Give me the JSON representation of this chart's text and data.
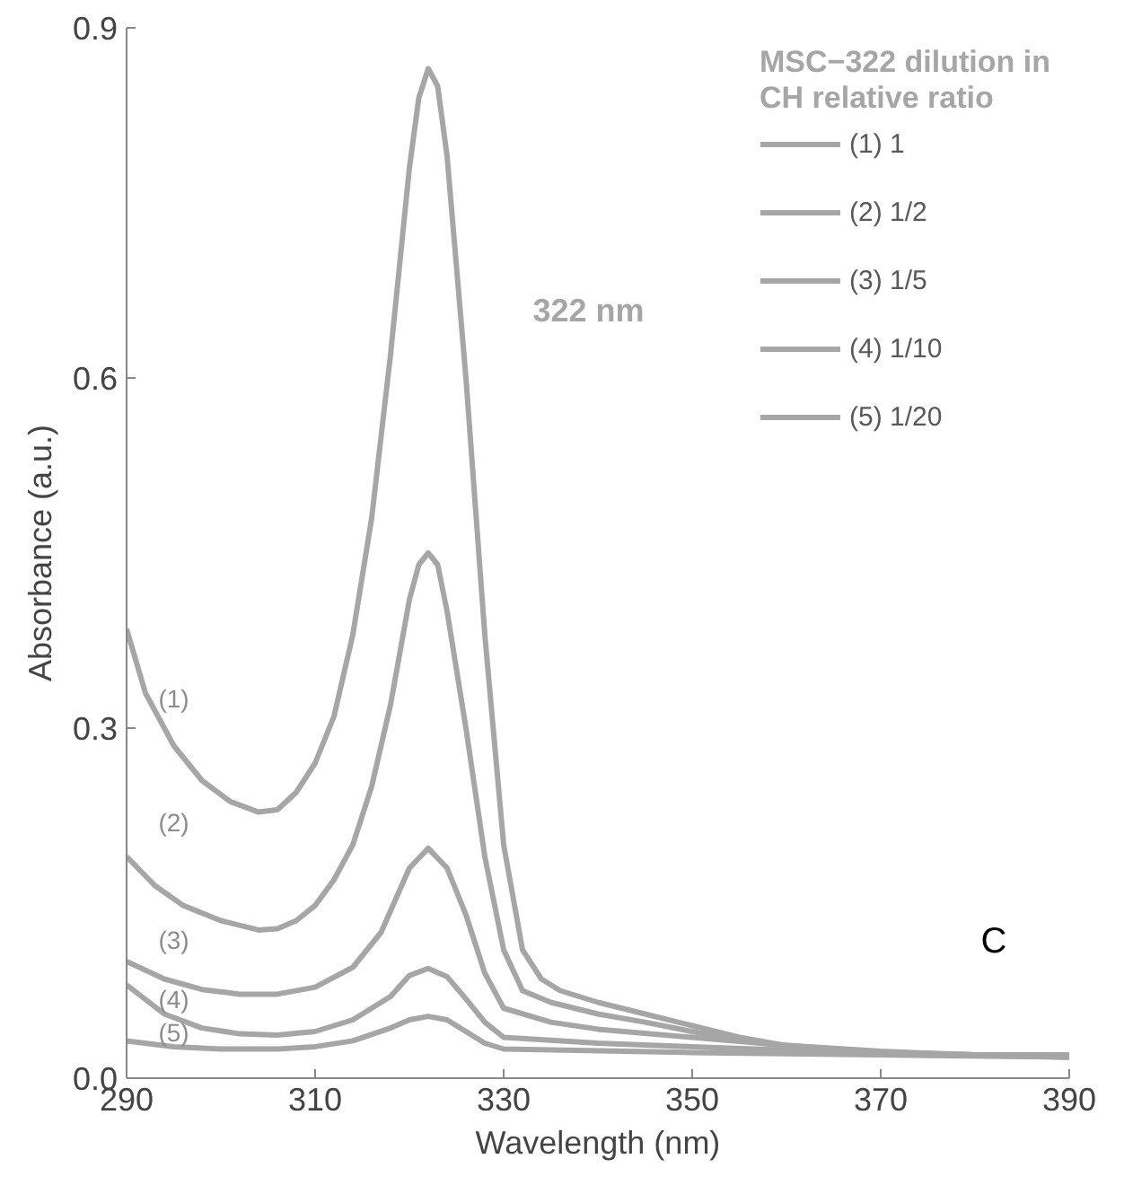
{
  "chart_data": {
    "type": "line",
    "xlabel": "Wavelength (nm)",
    "ylabel": "Absorbance (a.u.)",
    "legend_title": "MSC−322 dilution in CH relative ratio",
    "legend": "top right",
    "grid": false,
    "xlim": [
      290,
      390
    ],
    "xticks": [
      290,
      310,
      330,
      350,
      370,
      390
    ],
    "ylim": [
      0,
      0.9
    ],
    "yticks": [
      {
        "value": 0,
        "label": "0.0"
      },
      {
        "value": 0.3,
        "label": "0.3"
      },
      {
        "value": 0.6,
        "label": "0.6"
      },
      {
        "value": 0.9,
        "label": "0.9"
      }
    ],
    "series": [
      {
        "name": "(1) 1",
        "color": "#a6a6a6",
        "x": [
          290,
          292,
          295,
          298,
          301,
          304,
          306,
          308,
          310,
          312,
          314,
          316,
          318,
          320,
          321,
          322,
          323,
          324,
          326,
          328,
          330,
          332,
          334,
          336,
          340,
          345,
          350,
          355,
          360,
          370,
          380,
          390
        ],
        "values": [
          0.385,
          0.33,
          0.285,
          0.255,
          0.237,
          0.228,
          0.23,
          0.245,
          0.27,
          0.31,
          0.38,
          0.48,
          0.62,
          0.78,
          0.84,
          0.865,
          0.85,
          0.79,
          0.6,
          0.38,
          0.2,
          0.11,
          0.085,
          0.075,
          0.065,
          0.055,
          0.045,
          0.035,
          0.028,
          0.023,
          0.02,
          0.02
        ]
      },
      {
        "name": "(2) 1/2",
        "color": "#a6a6a6",
        "x": [
          290,
          293,
          296,
          300,
          304,
          306,
          308,
          310,
          312,
          314,
          316,
          318,
          320,
          321,
          322,
          323,
          324,
          326,
          328,
          330,
          332,
          335,
          340,
          345,
          350,
          355,
          360,
          370,
          380,
          390
        ],
        "values": [
          0.19,
          0.165,
          0.148,
          0.135,
          0.127,
          0.128,
          0.135,
          0.148,
          0.17,
          0.2,
          0.25,
          0.32,
          0.41,
          0.44,
          0.45,
          0.44,
          0.4,
          0.3,
          0.19,
          0.11,
          0.075,
          0.065,
          0.055,
          0.048,
          0.04,
          0.033,
          0.027,
          0.022,
          0.02,
          0.019
        ]
      },
      {
        "name": "(3) 1/5",
        "color": "#a6a6a6",
        "x": [
          290,
          294,
          298,
          302,
          306,
          310,
          314,
          317,
          320,
          322,
          324,
          326,
          328,
          330,
          335,
          340,
          350,
          360,
          370,
          380,
          390
        ],
        "values": [
          0.1,
          0.085,
          0.076,
          0.072,
          0.072,
          0.078,
          0.095,
          0.125,
          0.18,
          0.197,
          0.18,
          0.14,
          0.09,
          0.06,
          0.048,
          0.042,
          0.035,
          0.028,
          0.022,
          0.02,
          0.018
        ]
      },
      {
        "name": "(4) 1/10",
        "color": "#a6a6a6",
        "x": [
          290,
          294,
          298,
          302,
          306,
          310,
          314,
          318,
          320,
          322,
          324,
          326,
          328,
          330,
          340,
          350,
          360,
          370,
          390
        ],
        "values": [
          0.08,
          0.055,
          0.043,
          0.038,
          0.037,
          0.04,
          0.05,
          0.07,
          0.088,
          0.094,
          0.087,
          0.068,
          0.048,
          0.035,
          0.03,
          0.027,
          0.024,
          0.021,
          0.018
        ]
      },
      {
        "name": "(5) 1/20",
        "color": "#a6a6a6",
        "x": [
          290,
          295,
          300,
          306,
          310,
          314,
          318,
          320,
          322,
          324,
          326,
          328,
          330,
          350,
          370,
          390
        ],
        "values": [
          0.032,
          0.027,
          0.025,
          0.025,
          0.027,
          0.032,
          0.043,
          0.05,
          0.053,
          0.05,
          0.04,
          0.03,
          0.025,
          0.022,
          0.02,
          0.018
        ]
      }
    ],
    "annotations": [
      "(1)",
      "(2)",
      "(3)",
      "(4)",
      "(5)",
      "322 nm",
      "C"
    ]
  }
}
